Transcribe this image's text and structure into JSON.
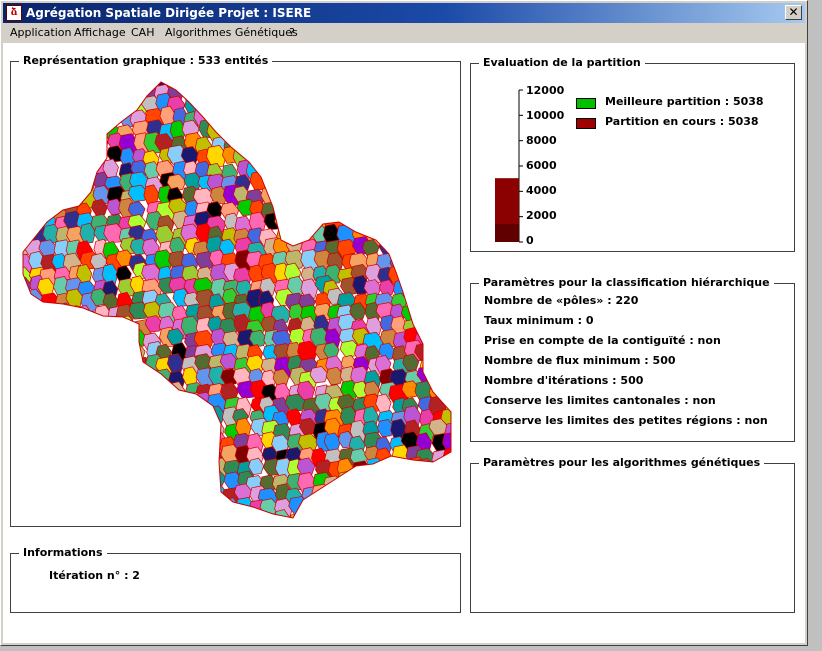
{
  "window": {
    "title": "Agrégation Spatiale Dirigée  Projet : ISERE",
    "icon_text": "ձ",
    "close_glyph": "✕"
  },
  "menu": [
    "Application",
    "Affichage",
    "CAH",
    "Algorithmes Génétiques",
    "?"
  ],
  "map_panel": {
    "title": "Représentation graphique :   533 entités"
  },
  "evaluation": {
    "title": "Evaluation de la partition",
    "ticks": [
      "12000",
      "10000",
      "8000",
      "6000",
      "4000",
      "2000",
      "0"
    ],
    "best_label": "Meilleure partition : 5038",
    "current_label": "Partition en cours : 5038",
    "best_color": "#00c000",
    "current_color": "#a00000",
    "value": 5038,
    "max": 12000
  },
  "cah": {
    "title": "Paramètres pour la classification hiérarchique",
    "lines": [
      "Nombre de «pôles» : 220",
      "Taux minimum : 0",
      "Prise en compte de la contiguïté : non",
      "Nombre de flux minimum : 500",
      "Nombre d'itérations : 500",
      "Conserve les limites cantonales : non",
      "Conserve les limites des petites régions : non"
    ]
  },
  "genetic": {
    "title": "Paramètres pour les algorithmes génétiques"
  },
  "info": {
    "title": "Informations",
    "iteration": "Itération n° : 2"
  }
}
